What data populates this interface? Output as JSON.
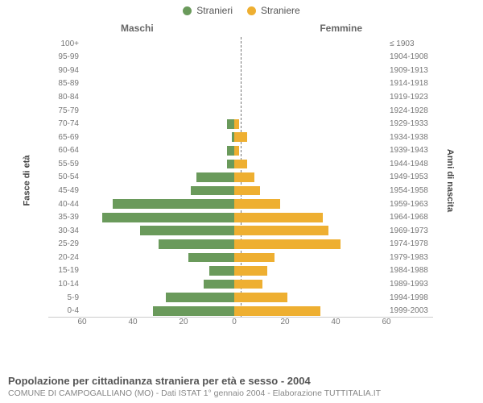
{
  "legend": {
    "male": "Stranieri",
    "female": "Straniere"
  },
  "chart": {
    "type": "population-pyramid",
    "title_left": "Maschi",
    "title_right": "Femmine",
    "y_left_title": "Fasce di età",
    "y_right_title": "Anni di nascita",
    "male_color": "#6a9a5b",
    "female_color": "#eeaf31",
    "background_color": "#ffffff",
    "grid_color": "#e0e0e0",
    "center_line_color": "#777777",
    "x_max": 60,
    "x_ticks": [
      60,
      40,
      20,
      0,
      20,
      40,
      60
    ],
    "bar_height_ratio": 0.7,
    "rows": [
      {
        "age": "100+",
        "birth": "≤ 1903",
        "m": 0,
        "f": 0
      },
      {
        "age": "95-99",
        "birth": "1904-1908",
        "m": 0,
        "f": 0
      },
      {
        "age": "90-94",
        "birth": "1909-1913",
        "m": 0,
        "f": 0
      },
      {
        "age": "85-89",
        "birth": "1914-1918",
        "m": 0,
        "f": 0
      },
      {
        "age": "80-84",
        "birth": "1919-1923",
        "m": 0,
        "f": 0
      },
      {
        "age": "75-79",
        "birth": "1924-1928",
        "m": 0,
        "f": 0
      },
      {
        "age": "70-74",
        "birth": "1929-1933",
        "m": 3,
        "f": 2
      },
      {
        "age": "65-69",
        "birth": "1934-1938",
        "m": 1,
        "f": 5
      },
      {
        "age": "60-64",
        "birth": "1939-1943",
        "m": 3,
        "f": 2
      },
      {
        "age": "55-59",
        "birth": "1944-1948",
        "m": 3,
        "f": 5
      },
      {
        "age": "50-54",
        "birth": "1949-1953",
        "m": 15,
        "f": 8
      },
      {
        "age": "45-49",
        "birth": "1954-1958",
        "m": 17,
        "f": 10
      },
      {
        "age": "40-44",
        "birth": "1959-1963",
        "m": 48,
        "f": 18
      },
      {
        "age": "35-39",
        "birth": "1964-1968",
        "m": 52,
        "f": 35
      },
      {
        "age": "30-34",
        "birth": "1969-1973",
        "m": 37,
        "f": 37
      },
      {
        "age": "25-29",
        "birth": "1974-1978",
        "m": 30,
        "f": 42
      },
      {
        "age": "20-24",
        "birth": "1979-1983",
        "m": 18,
        "f": 16
      },
      {
        "age": "15-19",
        "birth": "1984-1988",
        "m": 10,
        "f": 13
      },
      {
        "age": "10-14",
        "birth": "1989-1993",
        "m": 12,
        "f": 11
      },
      {
        "age": "5-9",
        "birth": "1994-1998",
        "m": 27,
        "f": 21
      },
      {
        "age": "0-4",
        "birth": "1999-2003",
        "m": 32,
        "f": 34
      }
    ]
  },
  "caption": {
    "line1": "Popolazione per cittadinanza straniera per età e sesso - 2004",
    "line2": "COMUNE DI CAMPOGALLIANO (MO) - Dati ISTAT 1° gennaio 2004 - Elaborazione TUTTITALIA.IT"
  }
}
